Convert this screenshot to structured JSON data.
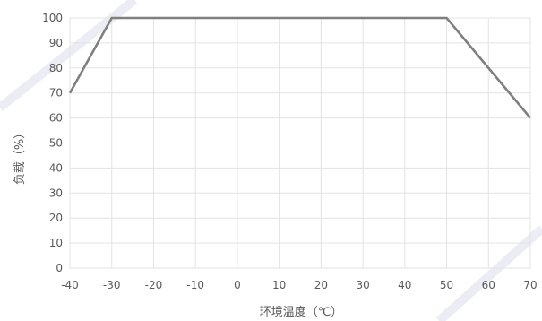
{
  "chart_data": {
    "type": "line",
    "title": "",
    "xlabel": "环境温度（℃）",
    "ylabel": "负载（%）",
    "x_ticks": [
      -40,
      -30,
      -20,
      -10,
      0,
      10,
      20,
      30,
      40,
      50,
      60,
      70
    ],
    "y_ticks": [
      0,
      10,
      20,
      30,
      40,
      50,
      60,
      70,
      80,
      90,
      100
    ],
    "xlim": [
      -40,
      70
    ],
    "ylim": [
      0,
      100
    ],
    "grid": true,
    "legend": "none",
    "series": [
      {
        "x": [
          -40,
          -30,
          50,
          70
        ],
        "y": [
          70,
          100,
          100,
          60
        ],
        "color": "#7f7f7f"
      }
    ],
    "colors": {
      "grid": "#e3e3e3",
      "line": "#7f7f7f",
      "text": "#595959",
      "watermark": "#ececf4"
    }
  }
}
